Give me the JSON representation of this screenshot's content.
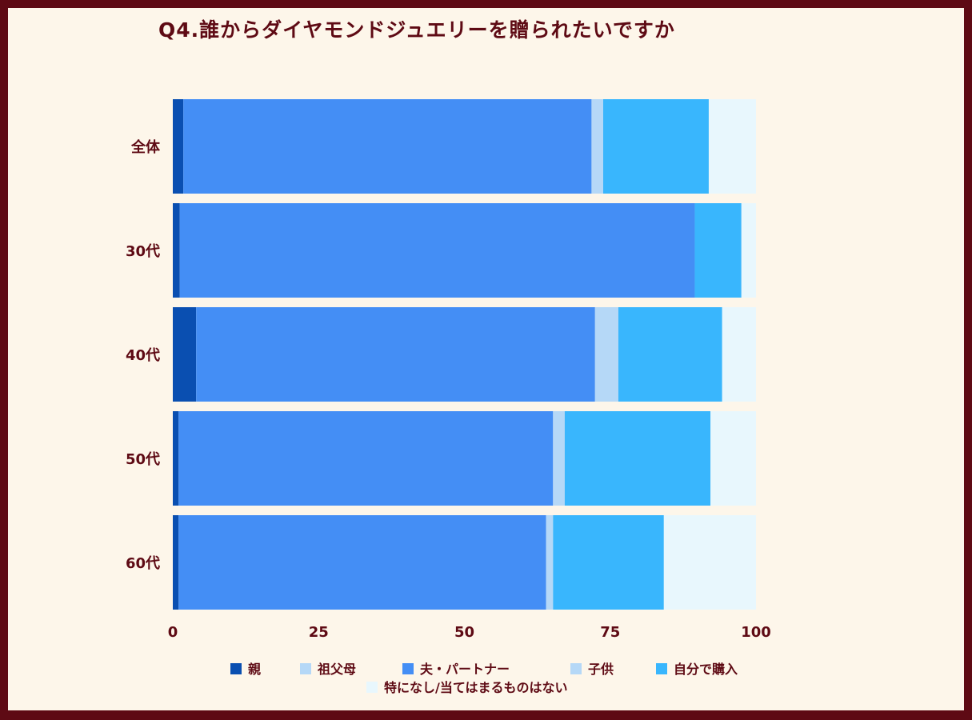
{
  "chart_data": {
    "type": "bar",
    "orientation": "horizontal",
    "stacked": true,
    "title": "Q4.誰からダイヤモンドジュエリーを贈られたいですか",
    "categories": [
      "全体",
      "30代",
      "40代",
      "50代",
      "60代"
    ],
    "xlim": [
      0,
      100
    ],
    "xticks": [
      0,
      25,
      50,
      75,
      100
    ],
    "legend_position": "bottom",
    "series": [
      {
        "name": "親",
        "color": "#0a4fb1",
        "values": [
          1.8,
          1.2,
          4.0,
          1.0,
          1.0
        ]
      },
      {
        "name": "祖父母",
        "color": "#b5d8f7",
        "values": [
          0,
          0,
          0,
          0,
          0
        ]
      },
      {
        "name": "夫・パートナー",
        "color": "#448ef5",
        "values": [
          70.0,
          88.3,
          68.4,
          64.2,
          63.0
        ]
      },
      {
        "name": "子供",
        "color": "#b5d8f7",
        "values": [
          2.0,
          0,
          4.0,
          2.0,
          1.2
        ]
      },
      {
        "name": "自分で購入",
        "color": "#39b6fd",
        "values": [
          18.1,
          8.0,
          17.8,
          25.0,
          19.0
        ]
      },
      {
        "name": "特になし/当てはまるものはない",
        "color": "#e8f7fd",
        "values": [
          8.1,
          2.5,
          5.8,
          7.8,
          15.8
        ]
      }
    ]
  }
}
